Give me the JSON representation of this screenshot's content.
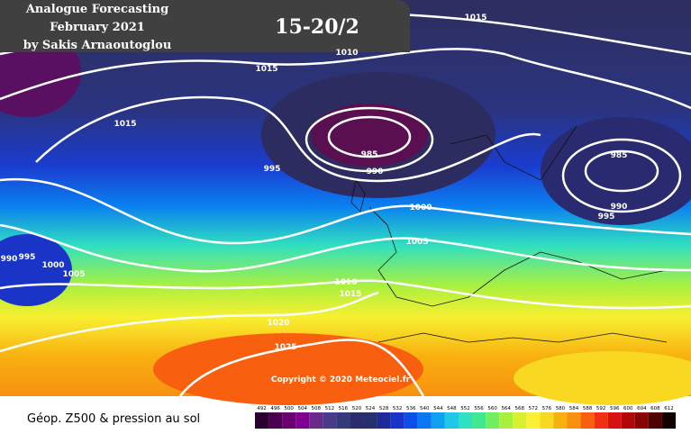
{
  "header": {
    "lines": [
      "Analogue Forecasting",
      "February 2021",
      "by Sakis Arnaoutoglou"
    ],
    "period": "15-20/2"
  },
  "isobar_labels": [
    1015,
    1010,
    1015,
    1015,
    985,
    990,
    995,
    985,
    990,
    995,
    1000,
    1005,
    990,
    995,
    1000,
    1005,
    1010,
    1015,
    1020,
    1025
  ],
  "copyright": "Copyright © 2020 Meteociel.fr",
  "legend": {
    "title": "Géop. Z500 & pression au sol",
    "ticks": [
      492,
      496,
      500,
      504,
      508,
      512,
      516,
      520,
      524,
      528,
      532,
      536,
      540,
      544,
      548,
      552,
      556,
      560,
      564,
      568,
      572,
      576,
      580,
      584,
      588,
      592,
      596,
      600,
      604,
      608,
      612
    ],
    "colors": [
      "#2a0030",
      "#4a0050",
      "#6a0070",
      "#800090",
      "#6a2a8a",
      "#4a3a8a",
      "#343a7a",
      "#2c2c6a",
      "#26306e",
      "#1e2a9a",
      "#1a34c8",
      "#0a50e8",
      "#0a78f0",
      "#10a0f0",
      "#20c8e8",
      "#30e0c0",
      "#40e890",
      "#70f060",
      "#a8f040",
      "#d8f030",
      "#f8f030",
      "#f8d820",
      "#f8b010",
      "#f89010",
      "#f86010",
      "#f03010",
      "#d81010",
      "#b00808",
      "#880404",
      "#500202",
      "#100000"
    ]
  }
}
